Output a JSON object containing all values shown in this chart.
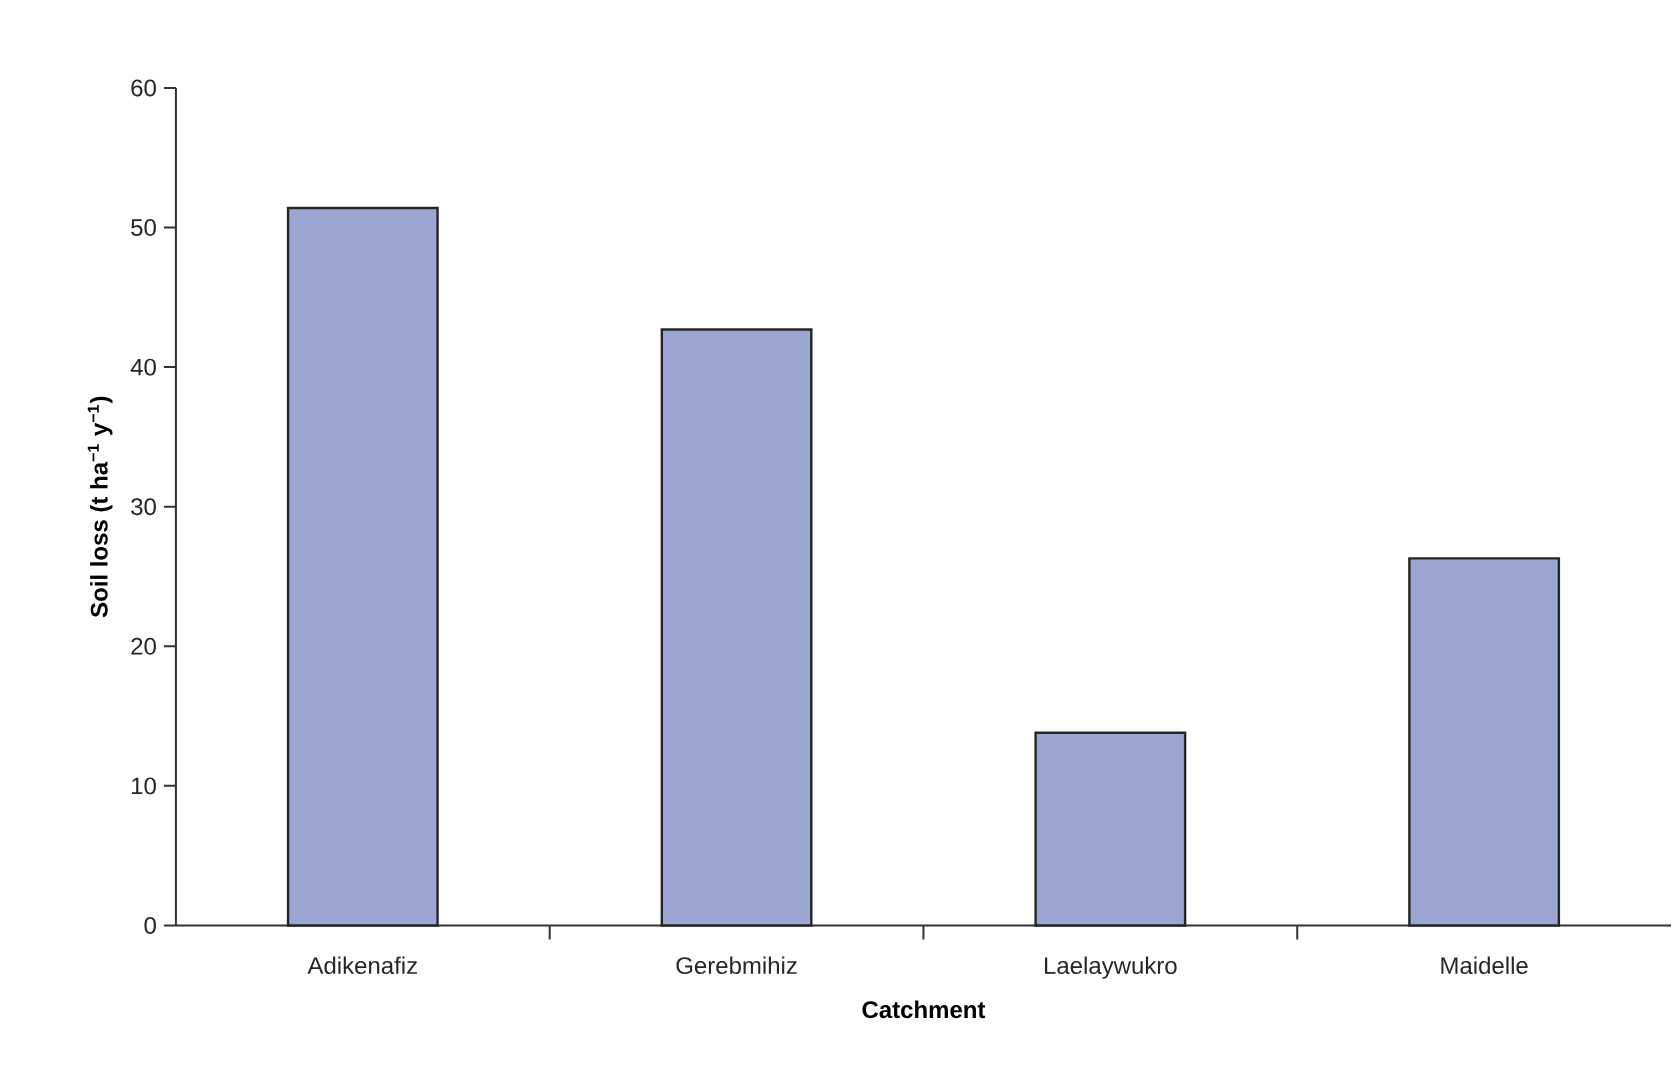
{
  "chart_data": {
    "type": "bar",
    "xlabel": "Catchment",
    "ylabel": "Soil loss (t ha$^{−1}$ y$^{−1}$)",
    "categories": [
      "Adikenafiz",
      "Gerebmihiz",
      "Laelaywukro",
      "Maidelle"
    ],
    "values": [
      51.4,
      42.7,
      13.8,
      26.3
    ],
    "color": "#9ba6d3",
    "ylim": [
      0,
      60
    ],
    "yticks": [
      0,
      10,
      20,
      30,
      40,
      50,
      60
    ]
  }
}
